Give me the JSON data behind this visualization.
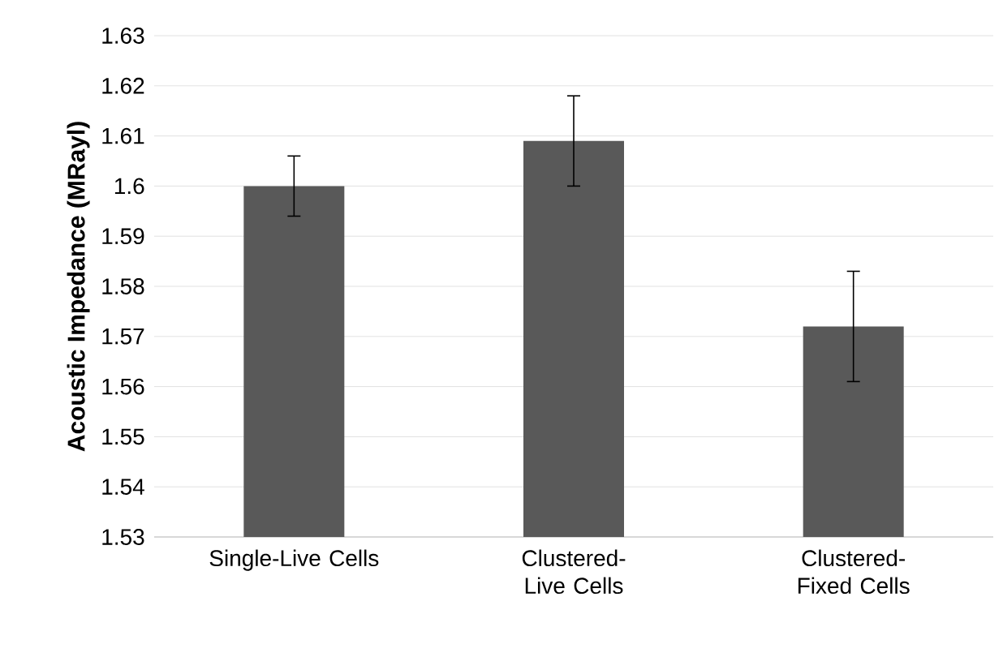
{
  "chart_data": {
    "type": "bar",
    "ylabel": "Acoustic Impedance (MRayl)",
    "categories": [
      "Single-Live Cells",
      "Clustered-Live Cells",
      "Clustered-Fixed Cells"
    ],
    "values": [
      1.6,
      1.609,
      1.572
    ],
    "errors": [
      [
        1.594,
        1.606
      ],
      [
        1.6,
        1.618
      ],
      [
        1.561,
        1.583
      ]
    ],
    "color": "#595959",
    "ylim": [
      1.53,
      1.63
    ],
    "yticks": [
      1.53,
      1.54,
      1.55,
      1.56,
      1.57,
      1.58,
      1.59,
      1.6,
      1.61,
      1.62,
      1.63
    ],
    "grid": "y"
  }
}
